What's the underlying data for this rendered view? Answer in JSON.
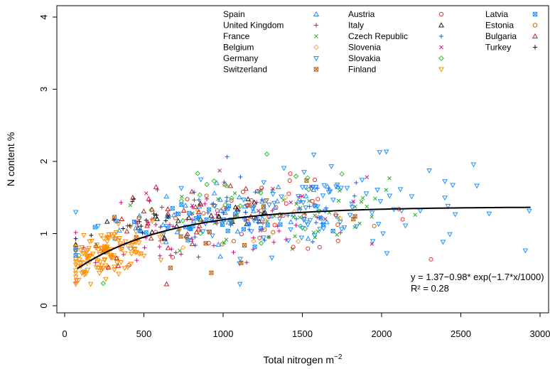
{
  "chart_data": {
    "type": "scatter",
    "xlabel": "Total nitrogen m",
    "xlabel_superscript": "−2",
    "ylabel": "N content %",
    "xlim": [
      0,
      3000
    ],
    "ylim": [
      0,
      4
    ],
    "x_ticks": [
      0,
      500,
      1000,
      1500,
      2000,
      2500,
      3000
    ],
    "y_ticks": [
      0,
      1,
      2,
      3,
      4
    ],
    "grid": false,
    "legend_position": "top",
    "series": [
      {
        "name": "Spain",
        "color": "#1E90FF",
        "marker": "triangle-up",
        "center": [
          1100,
          1.35
        ],
        "spread": [
          380,
          0.22
        ],
        "count": 45
      },
      {
        "name": "United Kingdom",
        "color": "#C71585",
        "marker": "plus",
        "center": [
          850,
          0.95
        ],
        "spread": [
          420,
          0.25
        ],
        "count": 65
      },
      {
        "name": "France",
        "color": "#22AA22",
        "marker": "x",
        "center": [
          1400,
          1.3
        ],
        "spread": [
          430,
          0.3
        ],
        "count": 45
      },
      {
        "name": "Belgium",
        "color": "#F4A340",
        "marker": "diamond",
        "center": [
          1250,
          1.3
        ],
        "spread": [
          450,
          0.3
        ],
        "count": 12
      },
      {
        "name": "Germany",
        "color": "#1E90FF",
        "marker": "triangle-down",
        "center": [
          1600,
          1.45
        ],
        "spread": [
          480,
          0.32
        ],
        "count": 110
      },
      {
        "name": "Switzerland",
        "color": "#B5651D",
        "marker": "square-cross",
        "center": [
          1100,
          1.05
        ],
        "spread": [
          450,
          0.25
        ],
        "count": 15
      },
      {
        "name": "Austria",
        "color": "#E03030",
        "marker": "circle",
        "center": [
          1300,
          1.2
        ],
        "spread": [
          450,
          0.25
        ],
        "count": 40
      },
      {
        "name": "Italy",
        "color": "#222222",
        "marker": "triangle-up",
        "center": [
          800,
          1.3
        ],
        "spread": [
          380,
          0.2
        ],
        "count": 30
      },
      {
        "name": "Czech Republic",
        "color": "#1E60E0",
        "marker": "plus",
        "center": [
          1200,
          1.3
        ],
        "spread": [
          400,
          0.25
        ],
        "count": 40
      },
      {
        "name": "Slovenia",
        "color": "#C71585",
        "marker": "x",
        "center": [
          1200,
          1.3
        ],
        "spread": [
          500,
          0.3
        ],
        "count": 15
      },
      {
        "name": "Slovakia",
        "color": "#33BB33",
        "marker": "diamond",
        "center": [
          1150,
          1.5
        ],
        "spread": [
          400,
          0.3
        ],
        "count": 30
      },
      {
        "name": "Finland",
        "color": "#FF8C00",
        "marker": "triangle-down",
        "center": [
          250,
          0.72
        ],
        "spread": [
          150,
          0.15
        ],
        "count": 140
      },
      {
        "name": "Latvia",
        "color": "#1E90FF",
        "marker": "square-cross",
        "center": [
          900,
          1.1
        ],
        "spread": [
          420,
          0.2
        ],
        "count": 40
      },
      {
        "name": "Estonia",
        "color": "#B5651D",
        "marker": "circle",
        "center": [
          1100,
          1.1
        ],
        "spread": [
          400,
          0.2
        ],
        "count": 15
      },
      {
        "name": "Bulgaria",
        "color": "#CC2222",
        "marker": "triangle-up",
        "center": [
          700,
          1.5
        ],
        "spread": [
          300,
          0.35
        ],
        "count": 30
      },
      {
        "name": "Turkey",
        "color": "#111111",
        "marker": "plus",
        "center": [
          450,
          1.35
        ],
        "spread": [
          150,
          0.2
        ],
        "count": 15
      }
    ],
    "fit": {
      "a": 1.37,
      "b": 0.98,
      "k": 1.7,
      "divisor": 1000,
      "x_range": [
        80,
        2950
      ],
      "color": "#000000"
    },
    "annotation_equation": "y = 1.37−0.98* exp(−1.7*x/1000)",
    "annotation_r2": "R² = 0.28"
  }
}
